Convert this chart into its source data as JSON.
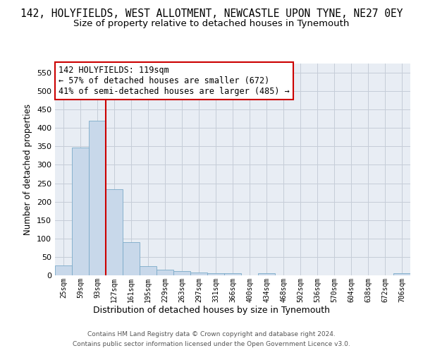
{
  "title": "142, HOLYFIELDS, WEST ALLOTMENT, NEWCASTLE UPON TYNE, NE27 0EY",
  "subtitle": "Size of property relative to detached houses in Tynemouth",
  "xlabel": "Distribution of detached houses by size in Tynemouth",
  "ylabel": "Number of detached properties",
  "categories": [
    "25sqm",
    "59sqm",
    "93sqm",
    "127sqm",
    "161sqm",
    "195sqm",
    "229sqm",
    "263sqm",
    "297sqm",
    "331sqm",
    "366sqm",
    "400sqm",
    "434sqm",
    "468sqm",
    "502sqm",
    "536sqm",
    "570sqm",
    "604sqm",
    "638sqm",
    "672sqm",
    "706sqm"
  ],
  "values": [
    27,
    347,
    420,
    233,
    90,
    24,
    15,
    12,
    8,
    6,
    5,
    0,
    5,
    0,
    0,
    0,
    0,
    0,
    0,
    0,
    5
  ],
  "bar_color": "#c8d8ea",
  "bar_edge_color": "#7aaac8",
  "red_line_x": 2.5,
  "red_line_color": "#cc0000",
  "annotation_text": "142 HOLYFIELDS: 119sqm\n← 57% of detached houses are smaller (672)\n41% of semi-detached houses are larger (485) →",
  "annotation_box_color": "#ffffff",
  "annotation_box_edge_color": "#cc0000",
  "yticks": [
    0,
    50,
    100,
    150,
    200,
    250,
    300,
    350,
    400,
    450,
    500,
    550
  ],
  "ylim": [
    0,
    575
  ],
  "bg_color": "#ffffff",
  "plot_bg_color": "#e8edf4",
  "grid_color": "#c5cdd8",
  "footer_line1": "Contains HM Land Registry data © Crown copyright and database right 2024.",
  "footer_line2": "Contains public sector information licensed under the Open Government Licence v3.0.",
  "title_fontsize": 10.5,
  "subtitle_fontsize": 9.5,
  "annotation_fontsize": 8.5
}
